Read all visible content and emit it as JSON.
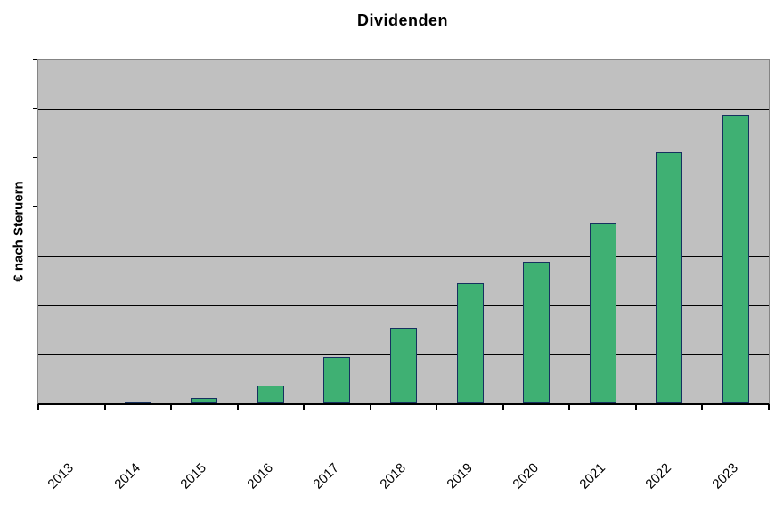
{
  "chart_data": {
    "type": "bar",
    "title": "Dividenden",
    "ylabel": "€ nach Steruern",
    "xlabel": "",
    "categories": [
      "2013",
      "2014",
      "2015",
      "2016",
      "2017",
      "2018",
      "2019",
      "2020",
      "2021",
      "2022",
      "2023"
    ],
    "values": [
      0,
      0.04,
      0.11,
      0.36,
      0.95,
      1.54,
      2.45,
      2.88,
      3.66,
      5.12,
      5.87
    ],
    "ylim": [
      0,
      7
    ],
    "y_gridline_divisions": 7,
    "y_tick_labels_visible": false,
    "grid": "horizontal",
    "legend": "none",
    "x_tick_rotation_deg": 45
  },
  "colors": {
    "page_background": "#ffffff",
    "plot_background": "#c0c0c0",
    "plot_border": "#848484",
    "gridline": "#000000",
    "axis": "#000000",
    "bar_fill": "#3fb073",
    "bar_border": "#16305f",
    "text": "#000000"
  }
}
